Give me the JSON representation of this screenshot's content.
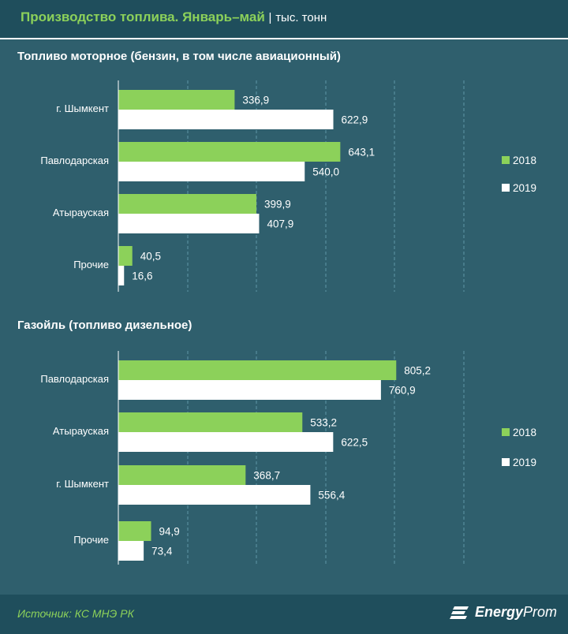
{
  "header": {
    "title": "Производство топлива. Январь–май",
    "separator": "|",
    "unit": "тыс. тонн"
  },
  "footer": {
    "source": "Источник: КС МНЭ РК",
    "logo_bold": "Energy",
    "logo_thin": "Prom"
  },
  "colors": {
    "series_2018": "#8cd15a",
    "series_2019": "#ffffff",
    "background": "#2f5f6d",
    "header": "#1f4e5c"
  },
  "chart_data": [
    {
      "type": "bar",
      "orientation": "horizontal",
      "title": "Топливо моторное (бензин, в том числе авиационный)",
      "categories": [
        "г. Шымкент",
        "Павлодарская",
        "Атырауская",
        "Прочие"
      ],
      "series": [
        {
          "name": "2018",
          "values": [
            336.9,
            643.1,
            399.9,
            40.5
          ],
          "labels": [
            "336,9",
            "643,1",
            "399,9",
            "40,5"
          ]
        },
        {
          "name": "2019",
          "values": [
            622.9,
            540.0,
            407.9,
            16.6
          ],
          "labels": [
            "622,9",
            "540,0",
            "407,9",
            "16,6"
          ]
        }
      ],
      "xlim": [
        0,
        1000
      ],
      "grid": true,
      "legend": "right"
    },
    {
      "type": "bar",
      "orientation": "horizontal",
      "title": "Газойль (топливо дизельное)",
      "categories": [
        "Павлодарская",
        "Атырауская",
        "г. Шымкент",
        "Прочие"
      ],
      "series": [
        {
          "name": "2018",
          "values": [
            805.2,
            533.2,
            368.7,
            94.9
          ],
          "labels": [
            "805,2",
            "533,2",
            "368,7",
            "94,9"
          ]
        },
        {
          "name": "2019",
          "values": [
            760.9,
            622.5,
            556.4,
            73.4
          ],
          "labels": [
            "760,9",
            "622,5",
            "556,4",
            "73,4"
          ]
        }
      ],
      "xlim": [
        0,
        1000
      ],
      "grid": true,
      "legend": "right"
    }
  ]
}
